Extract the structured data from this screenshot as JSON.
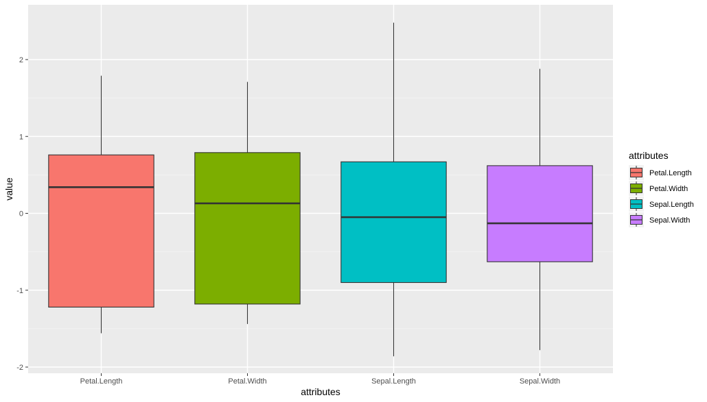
{
  "chart_data": {
    "type": "box",
    "xlabel": "attributes",
    "ylabel": "value",
    "ylim": [
      -2.2,
      2.7
    ],
    "yticks": [
      -2,
      -1,
      0,
      1,
      2
    ],
    "y_tick_labels": [
      "-2",
      "-1",
      "0",
      "1",
      "2"
    ],
    "grid": true,
    "legend": {
      "title": "attributes",
      "position": "right"
    },
    "categories": [
      "Petal.Length",
      "Petal.Width",
      "Sepal.Length",
      "Sepal.Width"
    ],
    "series": [
      {
        "name": "Petal.Length",
        "color": "#F8766D",
        "min": -1.56,
        "q1": -1.22,
        "median": 0.34,
        "q3": 0.76,
        "max": 1.79
      },
      {
        "name": "Petal.Width",
        "color": "#7CAE00",
        "min": -1.44,
        "q1": -1.18,
        "median": 0.13,
        "q3": 0.79,
        "max": 1.71
      },
      {
        "name": "Sepal.Length",
        "color": "#00BFC4",
        "min": -1.86,
        "q1": -0.9,
        "median": -0.05,
        "q3": 0.67,
        "max": 2.48
      },
      {
        "name": "Sepal.Width",
        "color": "#C77CFF",
        "min": -1.78,
        "q1": -0.63,
        "median": -0.13,
        "q3": 0.62,
        "max": 1.88
      }
    ]
  }
}
